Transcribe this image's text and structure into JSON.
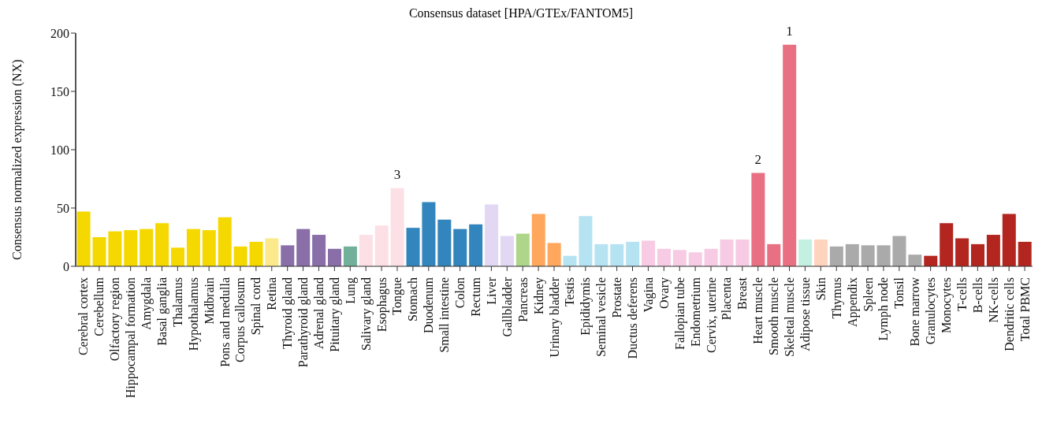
{
  "chart_data": {
    "type": "bar",
    "title": "Consensus dataset [HPA/GTEx/FANTOM5]",
    "ylabel": "Consensus normalized expression (NX)",
    "categories": [
      "Cerebral cortex",
      "Cerebellum",
      "Olfactory region",
      "Hippocampal formation",
      "Amygdala",
      "Basal ganglia",
      "Thalamus",
      "Hypothalamus",
      "Midbrain",
      "Pons and medulla",
      "Corpus callosum",
      "Spinal cord",
      "Retina",
      "Thyroid gland",
      "Parathyroid gland",
      "Adrenal gland",
      "Pituitary gland",
      "Lung",
      "Salivary gland",
      "Esophagus",
      "Tongue",
      "Stomach",
      "Duodenum",
      "Small intestine",
      "Colon",
      "Rectum",
      "Liver",
      "Gallbladder",
      "Pancreas",
      "Kidney",
      "Urinary bladder",
      "Testis",
      "Epididymis",
      "Seminal vesicle",
      "Prostate",
      "Ductus deferens",
      "Vagina",
      "Ovary",
      "Fallopian tube",
      "Endometrium",
      "Cervix, uterine",
      "Placenta",
      "Breast",
      "Heart muscle",
      "Smooth muscle",
      "Skeletal muscle",
      "Adipose tissue",
      "Skin",
      "Thymus",
      "Appendix",
      "Spleen",
      "Lymph node",
      "Tonsil",
      "Bone marrow",
      "Granulocytes",
      "Monocytes",
      "T-cells",
      "B-cells",
      "NK-cells",
      "Dendritic cells",
      "Total PBMC"
    ],
    "values": [
      47,
      25,
      30,
      31,
      32,
      37,
      16,
      32,
      31,
      42,
      17,
      21,
      24,
      18,
      32,
      27,
      15,
      17,
      27,
      35,
      67,
      33,
      55,
      40,
      32,
      36,
      53,
      26,
      28,
      45,
      20,
      9,
      43,
      19,
      19,
      21,
      22,
      15,
      14,
      12,
      15,
      23,
      23,
      80,
      19,
      190,
      23,
      23,
      17,
      19,
      18,
      18,
      26,
      10,
      9,
      37,
      24,
      19,
      27,
      45,
      21
    ],
    "colors": [
      "#f5d800",
      "#f5d800",
      "#f5d800",
      "#f5d800",
      "#f5d800",
      "#f5d800",
      "#f5d800",
      "#f5d800",
      "#f5d800",
      "#f5d800",
      "#f5d800",
      "#f5d800",
      "#fbe98b",
      "#8a6ea8",
      "#8a6ea8",
      "#8a6ea8",
      "#8a6ea8",
      "#72b09a",
      "#fde0e6",
      "#fde0e6",
      "#fde0e6",
      "#3385bd",
      "#3385bd",
      "#3385bd",
      "#3385bd",
      "#3385bd",
      "#e2d8f4",
      "#e2d8f4",
      "#aed68a",
      "#ffa75c",
      "#ffa75c",
      "#b6e3f2",
      "#b6e3f2",
      "#b6e3f2",
      "#b6e3f2",
      "#b6e3f2",
      "#f7cbe3",
      "#f7cbe3",
      "#f7cbe3",
      "#f7cbe3",
      "#f7cbe3",
      "#f7cbe3",
      "#f7cbe3",
      "#e97082",
      "#e97082",
      "#e97082",
      "#c4f0e2",
      "#ffd4bf",
      "#aaaaab",
      "#aaaaab",
      "#aaaaab",
      "#aaaaab",
      "#aaaaab",
      "#aaaaab",
      "#b32620",
      "#b32620",
      "#b32620",
      "#b32620",
      "#b32620",
      "#b32620",
      "#b32620"
    ],
    "ylim": [
      0,
      200
    ],
    "yticks": [
      0,
      50,
      100,
      150,
      200
    ],
    "grid": false,
    "legend": false,
    "annotations": [
      {
        "text": "1",
        "x": "Skeletal muscle",
        "y": 190
      },
      {
        "text": "2",
        "x": "Heart muscle",
        "y": 80
      },
      {
        "text": "3",
        "x": "Tongue",
        "y": 67
      }
    ]
  }
}
